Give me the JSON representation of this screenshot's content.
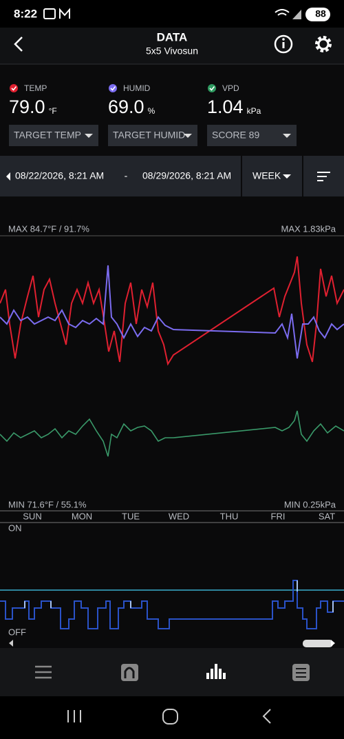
{
  "status_bar": {
    "time": "8:22",
    "battery": "88"
  },
  "header": {
    "title": "DATA",
    "subtitle": "5x5 Vivosun"
  },
  "readings": [
    {
      "label": "TEMP",
      "value": "79.0",
      "unit": "°F"
    },
    {
      "label": "HUMID",
      "value": "69.0",
      "unit": "%"
    },
    {
      "label": "VPD",
      "value": "1.04",
      "unit": "kPa"
    }
  ],
  "dropdowns": [
    "TARGET TEMP",
    "TARGET HUMID",
    "SCORE 89"
  ],
  "date_range": {
    "start": "08/22/2026, 8:21 AM",
    "separator": "-",
    "end": "08/29/2026, 8:21 AM",
    "period": "WEEK"
  },
  "chart": {
    "max_left": "MAX 84.7°F / 91.7%",
    "max_right": "MAX 1.83kPa",
    "min_left": "MIN 71.6°F / 55.1%",
    "min_right": "MIN 0.25kPa",
    "days": [
      "SUN",
      "MON",
      "TUE",
      "WED",
      "THU",
      "FRI",
      "SAT"
    ]
  },
  "device": {
    "on": "ON",
    "off": "OFF"
  }
}
